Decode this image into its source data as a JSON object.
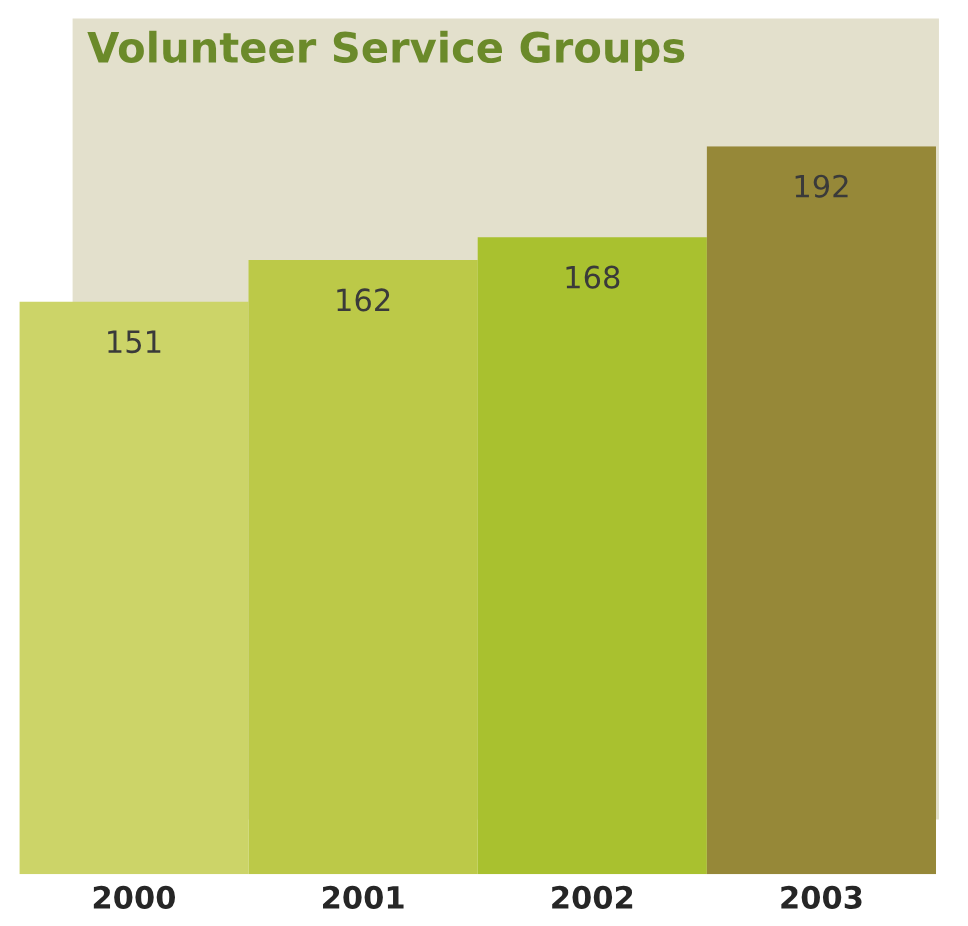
{
  "chart_data": {
    "type": "bar",
    "title": "Volunteer Service Groups",
    "categories": [
      "2000",
      "2001",
      "2002",
      "2003"
    ],
    "values": [
      151,
      162,
      168,
      192
    ],
    "colors": [
      "#ccd468",
      "#bcc948",
      "#a9c12f",
      "#968838"
    ],
    "data_labels": true
  }
}
